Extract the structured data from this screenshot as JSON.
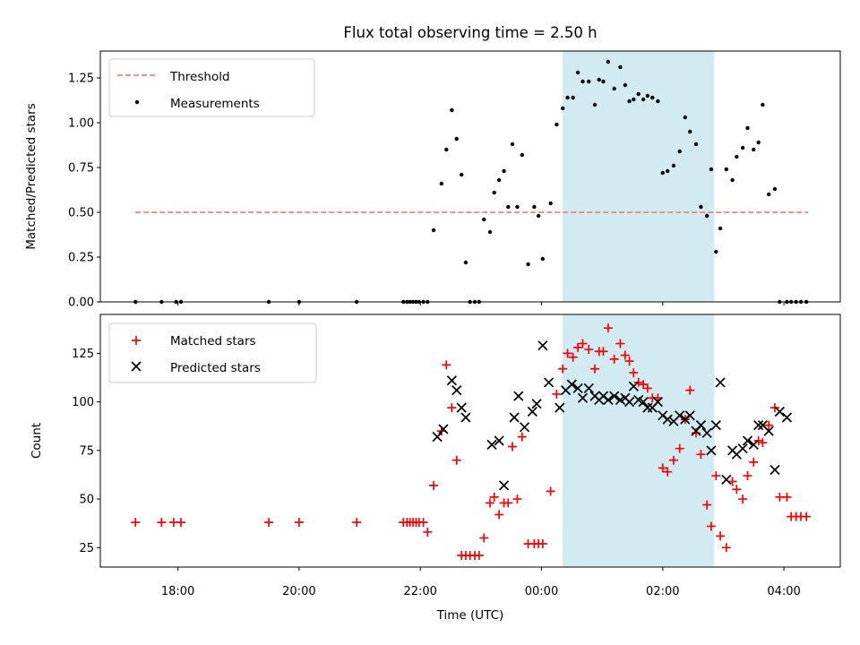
{
  "chart_data": [
    {
      "type": "scatter",
      "title": "Flux total observing time = 2.50 h",
      "xlabel": "",
      "ylabel": "Matched/Predicted stars",
      "xlim": [
        16.72,
        28.93
      ],
      "ylim": [
        0,
        1.4
      ],
      "yticks": [
        0.0,
        0.25,
        0.5,
        0.75,
        1.0,
        1.25
      ],
      "ytick_labels": [
        "0.00",
        "0.25",
        "0.50",
        "0.75",
        "1.00",
        "1.25"
      ],
      "grid": false,
      "legend": "upper left",
      "shaded_span": {
        "x0": 24.35,
        "x1": 26.85,
        "color": "#add8e6"
      },
      "threshold": {
        "name": "Threshold",
        "y": 0.5,
        "x0": 17.3,
        "x1": 28.4,
        "color": "#f08080"
      },
      "series": [
        {
          "name": "Measurements",
          "color": "#000000",
          "x": [
            17.3,
            17.73,
            17.97,
            18.05,
            19.5,
            20.0,
            20.95,
            21.72,
            21.78,
            21.83,
            21.88,
            21.93,
            21.98,
            22.05,
            22.12,
            22.22,
            22.35,
            22.43,
            22.52,
            22.6,
            22.68,
            22.75,
            22.82,
            22.9,
            22.97,
            23.05,
            23.15,
            23.22,
            23.3,
            23.38,
            23.45,
            23.52,
            23.6,
            23.68,
            23.78,
            23.88,
            23.95,
            24.02,
            24.15,
            24.25,
            24.35,
            24.43,
            24.52,
            24.6,
            24.68,
            24.78,
            24.88,
            24.95,
            25.02,
            25.1,
            25.2,
            25.3,
            25.38,
            25.45,
            25.52,
            25.6,
            25.68,
            25.75,
            25.83,
            25.92,
            26.0,
            26.08,
            26.18,
            26.28,
            26.37,
            26.45,
            26.55,
            26.63,
            26.73,
            26.8,
            26.88,
            26.95,
            27.05,
            27.15,
            27.22,
            27.32,
            27.4,
            27.5,
            27.58,
            27.65,
            27.75,
            27.85,
            27.93,
            28.05,
            28.12,
            28.2,
            28.28,
            28.37
          ],
          "values": [
            0,
            0,
            0,
            0,
            0,
            0,
            0,
            0,
            0,
            0,
            0,
            0,
            0,
            0,
            0,
            0.4,
            0.66,
            0.85,
            1.07,
            0.91,
            0.71,
            0.22,
            0,
            0,
            0,
            0.46,
            0.39,
            0.61,
            0.68,
            0.73,
            0.53,
            0.88,
            0.53,
            0.82,
            0.21,
            0.53,
            0.48,
            0.24,
            0.55,
            0.99,
            1.08,
            1.14,
            1.14,
            1.28,
            1.23,
            1.23,
            1.1,
            1.24,
            1.23,
            1.34,
            1.19,
            1.31,
            1.21,
            1.12,
            1.13,
            1.16,
            1.13,
            1.15,
            1.14,
            1.12,
            0.72,
            0.73,
            0.76,
            0.84,
            1.03,
            0.95,
            0.88,
            0.53,
            0.48,
            0.74,
            0.28,
            0.41,
            0.74,
            0.68,
            0.81,
            0.86,
            0.97,
            0.85,
            0.89,
            1.1,
            0.6,
            0.63,
            0,
            0,
            0,
            0,
            0,
            0
          ]
        }
      ]
    },
    {
      "type": "scatter",
      "title": "",
      "xlabel": "Time (UTC)",
      "ylabel": "Count",
      "xlim": [
        16.72,
        28.93
      ],
      "ylim": [
        15,
        145
      ],
      "xticks": [
        18,
        20,
        22,
        24,
        26,
        28
      ],
      "xtick_labels": [
        "18:00",
        "20:00",
        "22:00",
        "00:00",
        "02:00",
        "04:00"
      ],
      "yticks": [
        25,
        50,
        75,
        100,
        125
      ],
      "ytick_labels": [
        "25",
        "50",
        "75",
        "100",
        "125"
      ],
      "grid": false,
      "legend": "upper left",
      "shaded_span": {
        "x0": 24.35,
        "x1": 26.85,
        "color": "#add8e6"
      },
      "series": [
        {
          "name": "Matched stars",
          "marker": "+",
          "color": "#ff0000",
          "x": [
            17.3,
            17.73,
            17.93,
            18.05,
            19.5,
            20.0,
            20.95,
            21.72,
            21.78,
            21.83,
            21.88,
            21.93,
            21.98,
            22.05,
            22.12,
            22.22,
            22.35,
            22.43,
            22.52,
            22.6,
            22.68,
            22.75,
            22.82,
            22.9,
            22.97,
            23.05,
            23.15,
            23.22,
            23.3,
            23.38,
            23.45,
            23.52,
            23.6,
            23.68,
            23.78,
            23.88,
            23.95,
            24.02,
            24.15,
            24.25,
            24.35,
            24.43,
            24.52,
            24.6,
            24.68,
            24.78,
            24.88,
            24.95,
            25.02,
            25.1,
            25.2,
            25.3,
            25.38,
            25.45,
            25.52,
            25.6,
            25.68,
            25.75,
            25.83,
            25.92,
            26.0,
            26.08,
            26.18,
            26.28,
            26.37,
            26.45,
            26.55,
            26.63,
            26.73,
            26.8,
            26.88,
            26.95,
            27.05,
            27.15,
            27.22,
            27.32,
            27.4,
            27.5,
            27.58,
            27.65,
            27.75,
            27.85,
            27.93,
            28.05,
            28.12,
            28.2,
            28.28,
            28.37
          ],
          "values": [
            38,
            38,
            38,
            38,
            38,
            38,
            38,
            38,
            38,
            38,
            38,
            38,
            38,
            38,
            33,
            57,
            85,
            119,
            97,
            70,
            21,
            21,
            21,
            21,
            21,
            30,
            48,
            51,
            42,
            48,
            48,
            77,
            50,
            82,
            27,
            27,
            27,
            27,
            54,
            104,
            117,
            125,
            123,
            128,
            130,
            127,
            117,
            126,
            126,
            138,
            122,
            130,
            124,
            121,
            115,
            110,
            109,
            107,
            102,
            102,
            66,
            64,
            70,
            76,
            91,
            106,
            84,
            73,
            47,
            36,
            62,
            31,
            25,
            59,
            55,
            50,
            62,
            69,
            80,
            79,
            88,
            97,
            51,
            51,
            41,
            41,
            41,
            41
          ]
        },
        {
          "name": "Predicted stars",
          "marker": "x",
          "color": "#000000",
          "x": [
            22.28,
            22.38,
            22.52,
            22.6,
            22.68,
            22.75,
            23.18,
            23.3,
            23.38,
            23.55,
            23.62,
            23.72,
            23.85,
            23.92,
            24.02,
            24.12,
            24.3,
            24.4,
            24.5,
            24.6,
            24.68,
            24.78,
            24.88,
            24.95,
            25.02,
            25.1,
            25.2,
            25.3,
            25.38,
            25.45,
            25.52,
            25.6,
            25.68,
            25.75,
            25.83,
            25.92,
            26.0,
            26.08,
            26.18,
            26.28,
            26.37,
            26.45,
            26.55,
            26.63,
            26.73,
            26.8,
            26.88,
            26.95,
            27.05,
            27.15,
            27.22,
            27.32,
            27.4,
            27.5,
            27.58,
            27.65,
            27.75,
            27.85,
            27.93,
            28.05
          ],
          "values": [
            82,
            86,
            111,
            106,
            97,
            92,
            78,
            80,
            57,
            92,
            103,
            87,
            95,
            99,
            129,
            110,
            97,
            106,
            109,
            107,
            102,
            107,
            103,
            101,
            103,
            101,
            103,
            101,
            102,
            100,
            108,
            101,
            100,
            97,
            97,
            100,
            93,
            91,
            90,
            93,
            91,
            93,
            85,
            88,
            84,
            75,
            88,
            110,
            60,
            75,
            73,
            76,
            80,
            78,
            88,
            88,
            85,
            65,
            95,
            92
          ]
        }
      ]
    }
  ]
}
